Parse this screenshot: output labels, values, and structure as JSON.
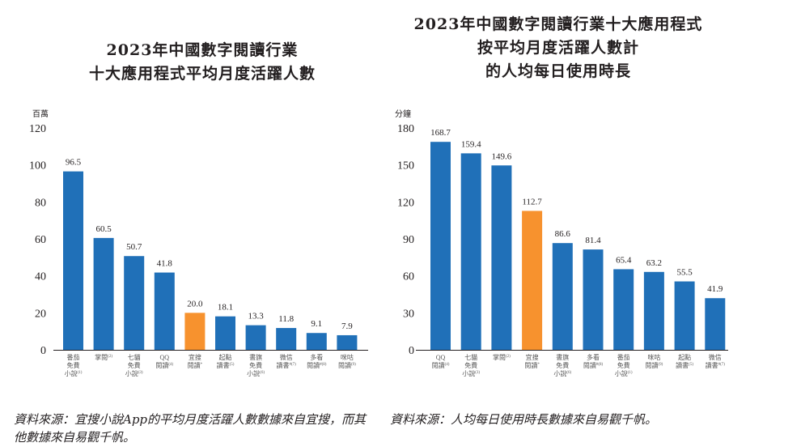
{
  "colors": {
    "bar": "#2070b8",
    "highlight": "#f7922e",
    "axis": "#231f20",
    "text": "#231f20"
  },
  "left": {
    "title_lines": [
      "2023年中國數字閱讀行業",
      "十大應用程式平均月度活躍人數"
    ],
    "source": "資料來源：宜搜小說App的平均月度活躍人數數據來自宜搜，而其他數據來自易觀千帆。"
  },
  "right": {
    "title_lines": [
      "2023年中國數字閱讀行業十大應用程式",
      "按平均月度活躍人數計",
      "的人均每日使用時長"
    ],
    "source": "資料來源：人均每日使用時長數據來自易觀千帆。"
  },
  "chart_data": [
    {
      "type": "bar",
      "title": "2023年中國數字閱讀行業十大應用程式平均月度活躍人數",
      "ylabel": "百萬",
      "xlabel": "",
      "ylim": [
        0,
        120
      ],
      "yticks": [
        0,
        20,
        40,
        60,
        80,
        100,
        120
      ],
      "grid": false,
      "highlight_index": 4,
      "categories": [
        {
          "lines": [
            "番茄",
            "免費",
            "小說"
          ],
          "note": "(1)"
        },
        {
          "lines": [
            "掌閱"
          ],
          "note": "(2)"
        },
        {
          "lines": [
            "七貓",
            "免費",
            "小說"
          ],
          "note": "(3)"
        },
        {
          "lines": [
            "QQ",
            "閱讀"
          ],
          "note": "(4)"
        },
        {
          "lines": [
            "宜搜",
            "閱讀"
          ],
          "note": "*"
        },
        {
          "lines": [
            "起點",
            "讀書"
          ],
          "note": "(5)"
        },
        {
          "lines": [
            "書旗",
            "免費",
            "小說"
          ],
          "note": "(6)"
        },
        {
          "lines": [
            "微信",
            "讀書"
          ],
          "note": "#(7)"
        },
        {
          "lines": [
            "多看",
            "閱讀"
          ],
          "note": "#(8)"
        },
        {
          "lines": [
            "咪咕",
            "閱讀"
          ],
          "note": "(9)"
        }
      ],
      "values": [
        96.5,
        60.5,
        50.7,
        41.8,
        20.0,
        18.1,
        13.3,
        11.8,
        9.1,
        7.9
      ],
      "value_labels": [
        "96.5",
        "60.5",
        "50.7",
        "41.8",
        "20.0",
        "18.1",
        "13.3",
        "11.8",
        "9.1",
        "7.9"
      ]
    },
    {
      "type": "bar",
      "title": "2023年中國數字閱讀行業十大應用程式按平均月度活躍人數計的人均每日使用時長",
      "ylabel": "分鐘",
      "xlabel": "",
      "ylim": [
        0,
        180
      ],
      "yticks": [
        0,
        30,
        60,
        90,
        120,
        150,
        180
      ],
      "grid": false,
      "highlight_index": 3,
      "categories": [
        {
          "lines": [
            "QQ",
            "閱讀"
          ],
          "note": "(4)"
        },
        {
          "lines": [
            "七貓",
            "免費",
            "小說"
          ],
          "note": "(3)"
        },
        {
          "lines": [
            "掌閱"
          ],
          "note": "(2)"
        },
        {
          "lines": [
            "宜搜",
            "閱讀"
          ],
          "note": "*"
        },
        {
          "lines": [
            "書旗",
            "免費",
            "小說"
          ],
          "note": "(6)"
        },
        {
          "lines": [
            "多看",
            "閱讀"
          ],
          "note": "#(8)"
        },
        {
          "lines": [
            "番茄",
            "免費",
            "小說"
          ],
          "note": "(1)"
        },
        {
          "lines": [
            "咪咕",
            "閱讀"
          ],
          "note": "(9)"
        },
        {
          "lines": [
            "起點",
            "讀書"
          ],
          "note": "(5)"
        },
        {
          "lines": [
            "微信",
            "讀書"
          ],
          "note": "#(7)"
        }
      ],
      "values": [
        168.7,
        159.4,
        149.6,
        112.7,
        86.6,
        81.4,
        65.4,
        63.2,
        55.5,
        41.9
      ],
      "value_labels": [
        "168.7",
        "159.4",
        "149.6",
        "112.7",
        "86.6",
        "81.4",
        "65.4",
        "63.2",
        "55.5",
        "41.9"
      ]
    }
  ]
}
